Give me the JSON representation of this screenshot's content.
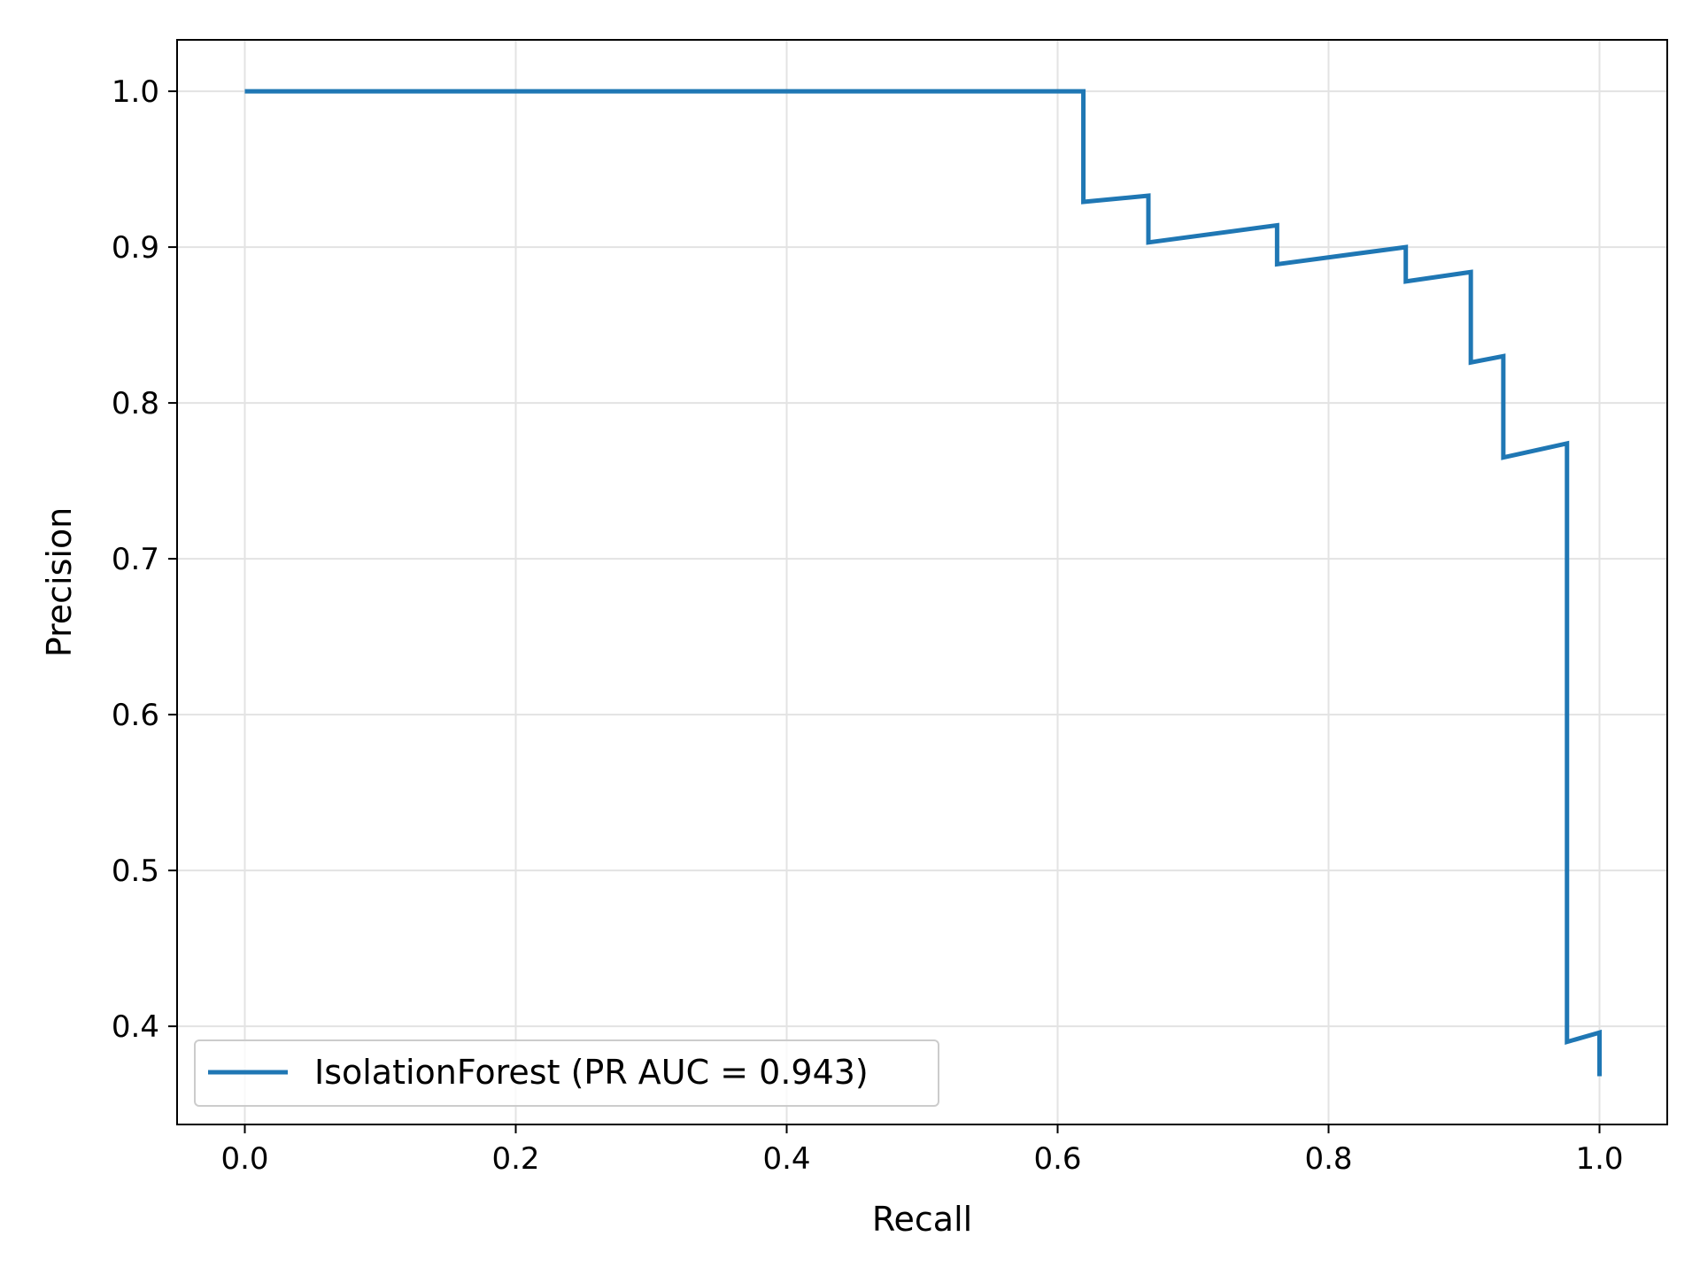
{
  "chart_data": {
    "type": "line",
    "title": "",
    "xlabel": "Recall",
    "ylabel": "Precision",
    "xlim": [
      -0.05,
      1.05
    ],
    "ylim": [
      0.337,
      1.033
    ],
    "xticks": [
      0.0,
      0.2,
      0.4,
      0.6,
      0.8,
      1.0
    ],
    "xtick_labels": [
      "0.0",
      "0.2",
      "0.4",
      "0.6",
      "0.8",
      "1.0"
    ],
    "yticks": [
      0.4,
      0.5,
      0.6,
      0.7,
      0.8,
      0.9,
      1.0
    ],
    "ytick_labels": [
      "0.4",
      "0.5",
      "0.6",
      "0.7",
      "0.8",
      "0.9",
      "1.0"
    ],
    "grid": true,
    "legend_position": "lower-left",
    "series": [
      {
        "name": "IsolationForest (PR AUC = 0.943)",
        "color": "#1f77b4",
        "x": [
          0.0,
          0.619,
          0.619,
          0.667,
          0.667,
          0.762,
          0.762,
          0.857,
          0.857,
          0.905,
          0.905,
          0.929,
          0.929,
          0.976,
          0.976,
          1.0,
          1.0
        ],
        "y": [
          1.0,
          1.0,
          0.929,
          0.933,
          0.903,
          0.914,
          0.889,
          0.9,
          0.878,
          0.884,
          0.826,
          0.83,
          0.765,
          0.774,
          0.39,
          0.396,
          0.368
        ]
      }
    ]
  }
}
